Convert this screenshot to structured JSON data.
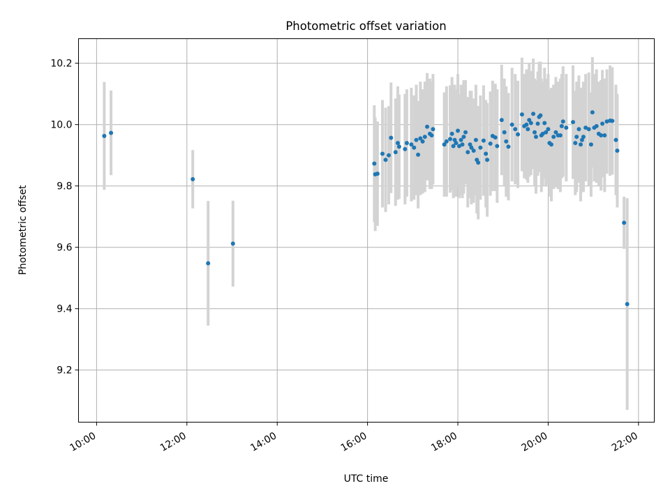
{
  "chart_data": {
    "type": "scatter",
    "title": "Photometric offset variation",
    "xlabel": "UTC time",
    "ylabel": "Photometric offset",
    "x_unit": "hours UTC",
    "xlim": [
      9.6,
      22.35
    ],
    "ylim": [
      9.03,
      10.28
    ],
    "x_ticks": [
      {
        "value": 10,
        "label": "10:00"
      },
      {
        "value": 12,
        "label": "12:00"
      },
      {
        "value": 14,
        "label": "14:00"
      },
      {
        "value": 16,
        "label": "16:00"
      },
      {
        "value": 18,
        "label": "18:00"
      },
      {
        "value": 20,
        "label": "20:00"
      },
      {
        "value": 22,
        "label": "22:00"
      }
    ],
    "y_ticks": [
      {
        "value": 9.2,
        "label": "9.2"
      },
      {
        "value": 9.4,
        "label": "9.4"
      },
      {
        "value": 9.6,
        "label": "9.6"
      },
      {
        "value": 9.8,
        "label": "9.8"
      },
      {
        "value": 10.0,
        "label": "10.0"
      },
      {
        "value": 10.2,
        "label": "10.2"
      }
    ],
    "grid": true,
    "point_color": "#1f77b4",
    "errorbar_color": "#d3d3d3",
    "series": [
      {
        "columns": [
          "x",
          "y",
          "yerr"
        ],
        "points": [
          [
            10.17,
            9.963,
            0.176
          ],
          [
            10.32,
            9.973,
            0.138
          ],
          [
            12.13,
            9.822,
            0.095
          ],
          [
            12.47,
            9.548,
            0.203
          ],
          [
            13.02,
            9.612,
            0.14
          ],
          [
            16.15,
            9.873,
            0.19
          ],
          [
            16.17,
            9.838,
            0.185
          ],
          [
            16.22,
            9.84,
            0.17
          ],
          [
            16.33,
            9.905,
            0.175
          ],
          [
            16.4,
            9.885,
            0.17
          ],
          [
            16.47,
            9.9,
            0.16
          ],
          [
            16.52,
            9.957,
            0.18
          ],
          [
            16.62,
            9.91,
            0.175
          ],
          [
            16.67,
            9.94,
            0.185
          ],
          [
            16.7,
            9.928,
            0.17
          ],
          [
            16.83,
            9.92,
            0.18
          ],
          [
            16.87,
            9.94,
            0.175
          ],
          [
            16.97,
            9.935,
            0.185
          ],
          [
            17.03,
            9.925,
            0.17
          ],
          [
            17.08,
            9.95,
            0.18
          ],
          [
            17.12,
            9.902,
            0.175
          ],
          [
            17.17,
            9.955,
            0.185
          ],
          [
            17.22,
            9.945,
            0.17
          ],
          [
            17.27,
            9.96,
            0.18
          ],
          [
            17.32,
            9.993,
            0.175
          ],
          [
            17.38,
            9.97,
            0.18
          ],
          [
            17.42,
            9.965,
            0.175
          ],
          [
            17.45,
            9.985,
            0.18
          ],
          [
            17.7,
            9.935,
            0.17
          ],
          [
            17.75,
            9.945,
            0.18
          ],
          [
            17.83,
            9.953,
            0.175
          ],
          [
            17.87,
            9.97,
            0.185
          ],
          [
            17.9,
            9.93,
            0.17
          ],
          [
            17.93,
            9.95,
            0.18
          ],
          [
            17.96,
            9.94,
            0.175
          ],
          [
            18.0,
            9.98,
            0.185
          ],
          [
            18.03,
            9.93,
            0.17
          ],
          [
            18.07,
            9.95,
            0.18
          ],
          [
            18.1,
            9.935,
            0.175
          ],
          [
            18.13,
            9.96,
            0.185
          ],
          [
            18.17,
            9.975,
            0.17
          ],
          [
            18.22,
            9.91,
            0.18
          ],
          [
            18.27,
            9.935,
            0.175
          ],
          [
            18.3,
            9.925,
            0.185
          ],
          [
            18.35,
            9.915,
            0.17
          ],
          [
            18.4,
            9.95,
            0.18
          ],
          [
            18.42,
            9.885,
            0.175
          ],
          [
            18.45,
            9.876,
            0.185
          ],
          [
            18.5,
            9.925,
            0.17
          ],
          [
            18.57,
            9.948,
            0.18
          ],
          [
            18.62,
            9.905,
            0.175
          ],
          [
            18.65,
            9.885,
            0.185
          ],
          [
            18.72,
            9.938,
            0.17
          ],
          [
            18.77,
            9.963,
            0.18
          ],
          [
            18.83,
            9.958,
            0.175
          ],
          [
            18.87,
            9.93,
            0.185
          ],
          [
            18.97,
            10.015,
            0.18
          ],
          [
            19.03,
            9.975,
            0.175
          ],
          [
            19.07,
            9.945,
            0.18
          ],
          [
            19.12,
            9.928,
            0.175
          ],
          [
            19.2,
            10.0,
            0.185
          ],
          [
            19.27,
            9.985,
            0.18
          ],
          [
            19.33,
            9.968,
            0.175
          ],
          [
            19.42,
            10.033,
            0.185
          ],
          [
            19.47,
            9.995,
            0.17
          ],
          [
            19.52,
            10.0,
            0.18
          ],
          [
            19.55,
            9.985,
            0.175
          ],
          [
            19.58,
            10.015,
            0.185
          ],
          [
            19.62,
            10.005,
            0.17
          ],
          [
            19.67,
            10.035,
            0.18
          ],
          [
            19.7,
            9.975,
            0.175
          ],
          [
            19.73,
            9.96,
            0.185
          ],
          [
            19.77,
            10.003,
            0.17
          ],
          [
            19.8,
            10.025,
            0.18
          ],
          [
            19.83,
            10.03,
            0.175
          ],
          [
            19.85,
            9.965,
            0.185
          ],
          [
            19.88,
            9.97,
            0.17
          ],
          [
            19.92,
            10.005,
            0.18
          ],
          [
            19.95,
            9.975,
            0.175
          ],
          [
            20.0,
            9.985,
            0.18
          ],
          [
            20.03,
            9.94,
            0.175
          ],
          [
            20.07,
            9.935,
            0.185
          ],
          [
            20.12,
            9.96,
            0.17
          ],
          [
            20.17,
            9.975,
            0.18
          ],
          [
            20.22,
            9.965,
            0.175
          ],
          [
            20.27,
            9.965,
            0.185
          ],
          [
            20.3,
            9.995,
            0.17
          ],
          [
            20.33,
            10.01,
            0.18
          ],
          [
            20.4,
            9.99,
            0.175
          ],
          [
            20.55,
            10.008,
            0.185
          ],
          [
            20.6,
            9.94,
            0.17
          ],
          [
            20.63,
            9.96,
            0.18
          ],
          [
            20.68,
            9.985,
            0.175
          ],
          [
            20.72,
            9.935,
            0.185
          ],
          [
            20.75,
            9.95,
            0.17
          ],
          [
            20.78,
            9.96,
            0.18
          ],
          [
            20.83,
            9.99,
            0.175
          ],
          [
            20.9,
            9.985,
            0.185
          ],
          [
            20.95,
            9.935,
            0.17
          ],
          [
            20.98,
            10.04,
            0.18
          ],
          [
            21.02,
            9.99,
            0.175
          ],
          [
            21.07,
            9.995,
            0.185
          ],
          [
            21.12,
            9.97,
            0.17
          ],
          [
            21.17,
            9.965,
            0.18
          ],
          [
            21.2,
            10.003,
            0.175
          ],
          [
            21.25,
            9.965,
            0.185
          ],
          [
            21.3,
            10.01,
            0.17
          ],
          [
            21.37,
            10.013,
            0.18
          ],
          [
            21.42,
            10.012,
            0.175
          ],
          [
            21.5,
            9.95,
            0.18
          ],
          [
            21.53,
            9.915,
            0.185
          ],
          [
            21.68,
            9.68,
            0.085
          ],
          [
            21.75,
            9.415,
            0.345
          ]
        ]
      }
    ]
  }
}
